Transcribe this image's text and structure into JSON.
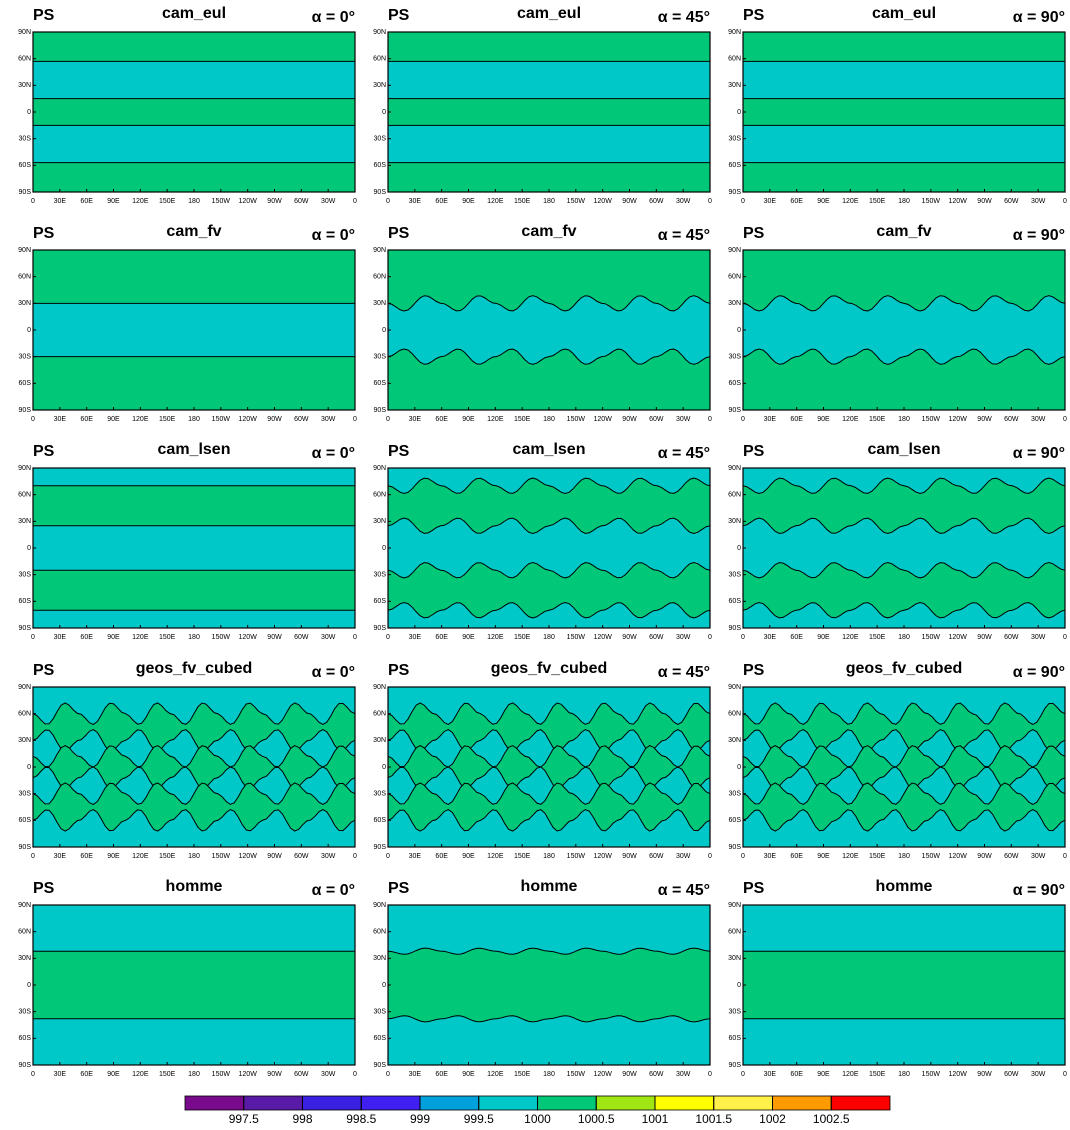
{
  "panels": [
    {
      "variable": "PS",
      "model": "cam_eul",
      "alpha": "α = 0°"
    },
    {
      "variable": "PS",
      "model": "cam_eul",
      "alpha": "α = 45°"
    },
    {
      "variable": "PS",
      "model": "cam_eul",
      "alpha": "α = 90°"
    },
    {
      "variable": "PS",
      "model": "cam_fv",
      "alpha": "α = 0°"
    },
    {
      "variable": "PS",
      "model": "cam_fv",
      "alpha": "α = 45°"
    },
    {
      "variable": "PS",
      "model": "cam_fv",
      "alpha": "α = 90°"
    },
    {
      "variable": "PS",
      "model": "cam_lsen",
      "alpha": "α = 0°"
    },
    {
      "variable": "PS",
      "model": "cam_lsen",
      "alpha": "α = 45°"
    },
    {
      "variable": "PS",
      "model": "cam_lsen",
      "alpha": "α = 90°"
    },
    {
      "variable": "PS",
      "model": "geos_fv_cubed",
      "alpha": "α = 0°"
    },
    {
      "variable": "PS",
      "model": "geos_fv_cubed",
      "alpha": "α = 45°"
    },
    {
      "variable": "PS",
      "model": "geos_fv_cubed",
      "alpha": "α = 90°"
    },
    {
      "variable": "PS",
      "model": "homme",
      "alpha": "α = 0°"
    },
    {
      "variable": "PS",
      "model": "homme",
      "alpha": "α = 45°"
    },
    {
      "variable": "PS",
      "model": "homme",
      "alpha": "α = 90°"
    }
  ],
  "x_tick_labels": [
    "0",
    "30E",
    "60E",
    "90E",
    "120E",
    "150E",
    "180",
    "150W",
    "120W",
    "90W",
    "60W",
    "30W",
    "0"
  ],
  "y_tick_labels": [
    "90N",
    "60N",
    "30N",
    "0",
    "30S",
    "60S",
    "90S"
  ],
  "colorbar": {
    "colors": [
      "#7a0a8c",
      "#5a1aa8",
      "#3a20e0",
      "#4020f0",
      "#00a0dc",
      "#00c8c8",
      "#00c878",
      "#a0e614",
      "#ffff00",
      "#fff04a",
      "#ff9a00",
      "#ff0000"
    ],
    "levels": [
      997.5,
      998,
      998.5,
      999,
      999.5,
      1000,
      1000.5,
      1001,
      1001.5,
      1002,
      1002.5
    ]
  }
}
